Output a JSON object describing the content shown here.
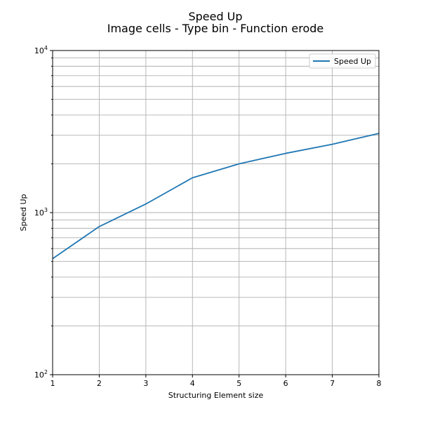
{
  "chart_data": {
    "type": "line",
    "title": "Speed Up",
    "subtitle": "Image cells - Type bin - Function erode",
    "xlabel": "Structuring Element size",
    "ylabel": "Speed Up",
    "xlim": [
      1,
      8
    ],
    "ylim": [
      100,
      10000
    ],
    "yscale": "log",
    "grid": true,
    "legend_position": "top-right",
    "x": [
      1,
      2,
      3,
      4,
      5,
      6,
      7,
      8
    ],
    "x_tick_labels": [
      "1",
      "2",
      "3",
      "4",
      "5",
      "6",
      "7",
      "8"
    ],
    "y_tick_labels": [
      {
        "base": "10",
        "exp": "2"
      },
      {
        "base": "10",
        "exp": "3"
      },
      {
        "base": "10",
        "exp": "4"
      }
    ],
    "series": [
      {
        "name": "Speed Up",
        "color": "#1f77b4",
        "values": [
          520,
          820,
          1130,
          1640,
          2000,
          2320,
          2640,
          3080
        ]
      }
    ]
  }
}
